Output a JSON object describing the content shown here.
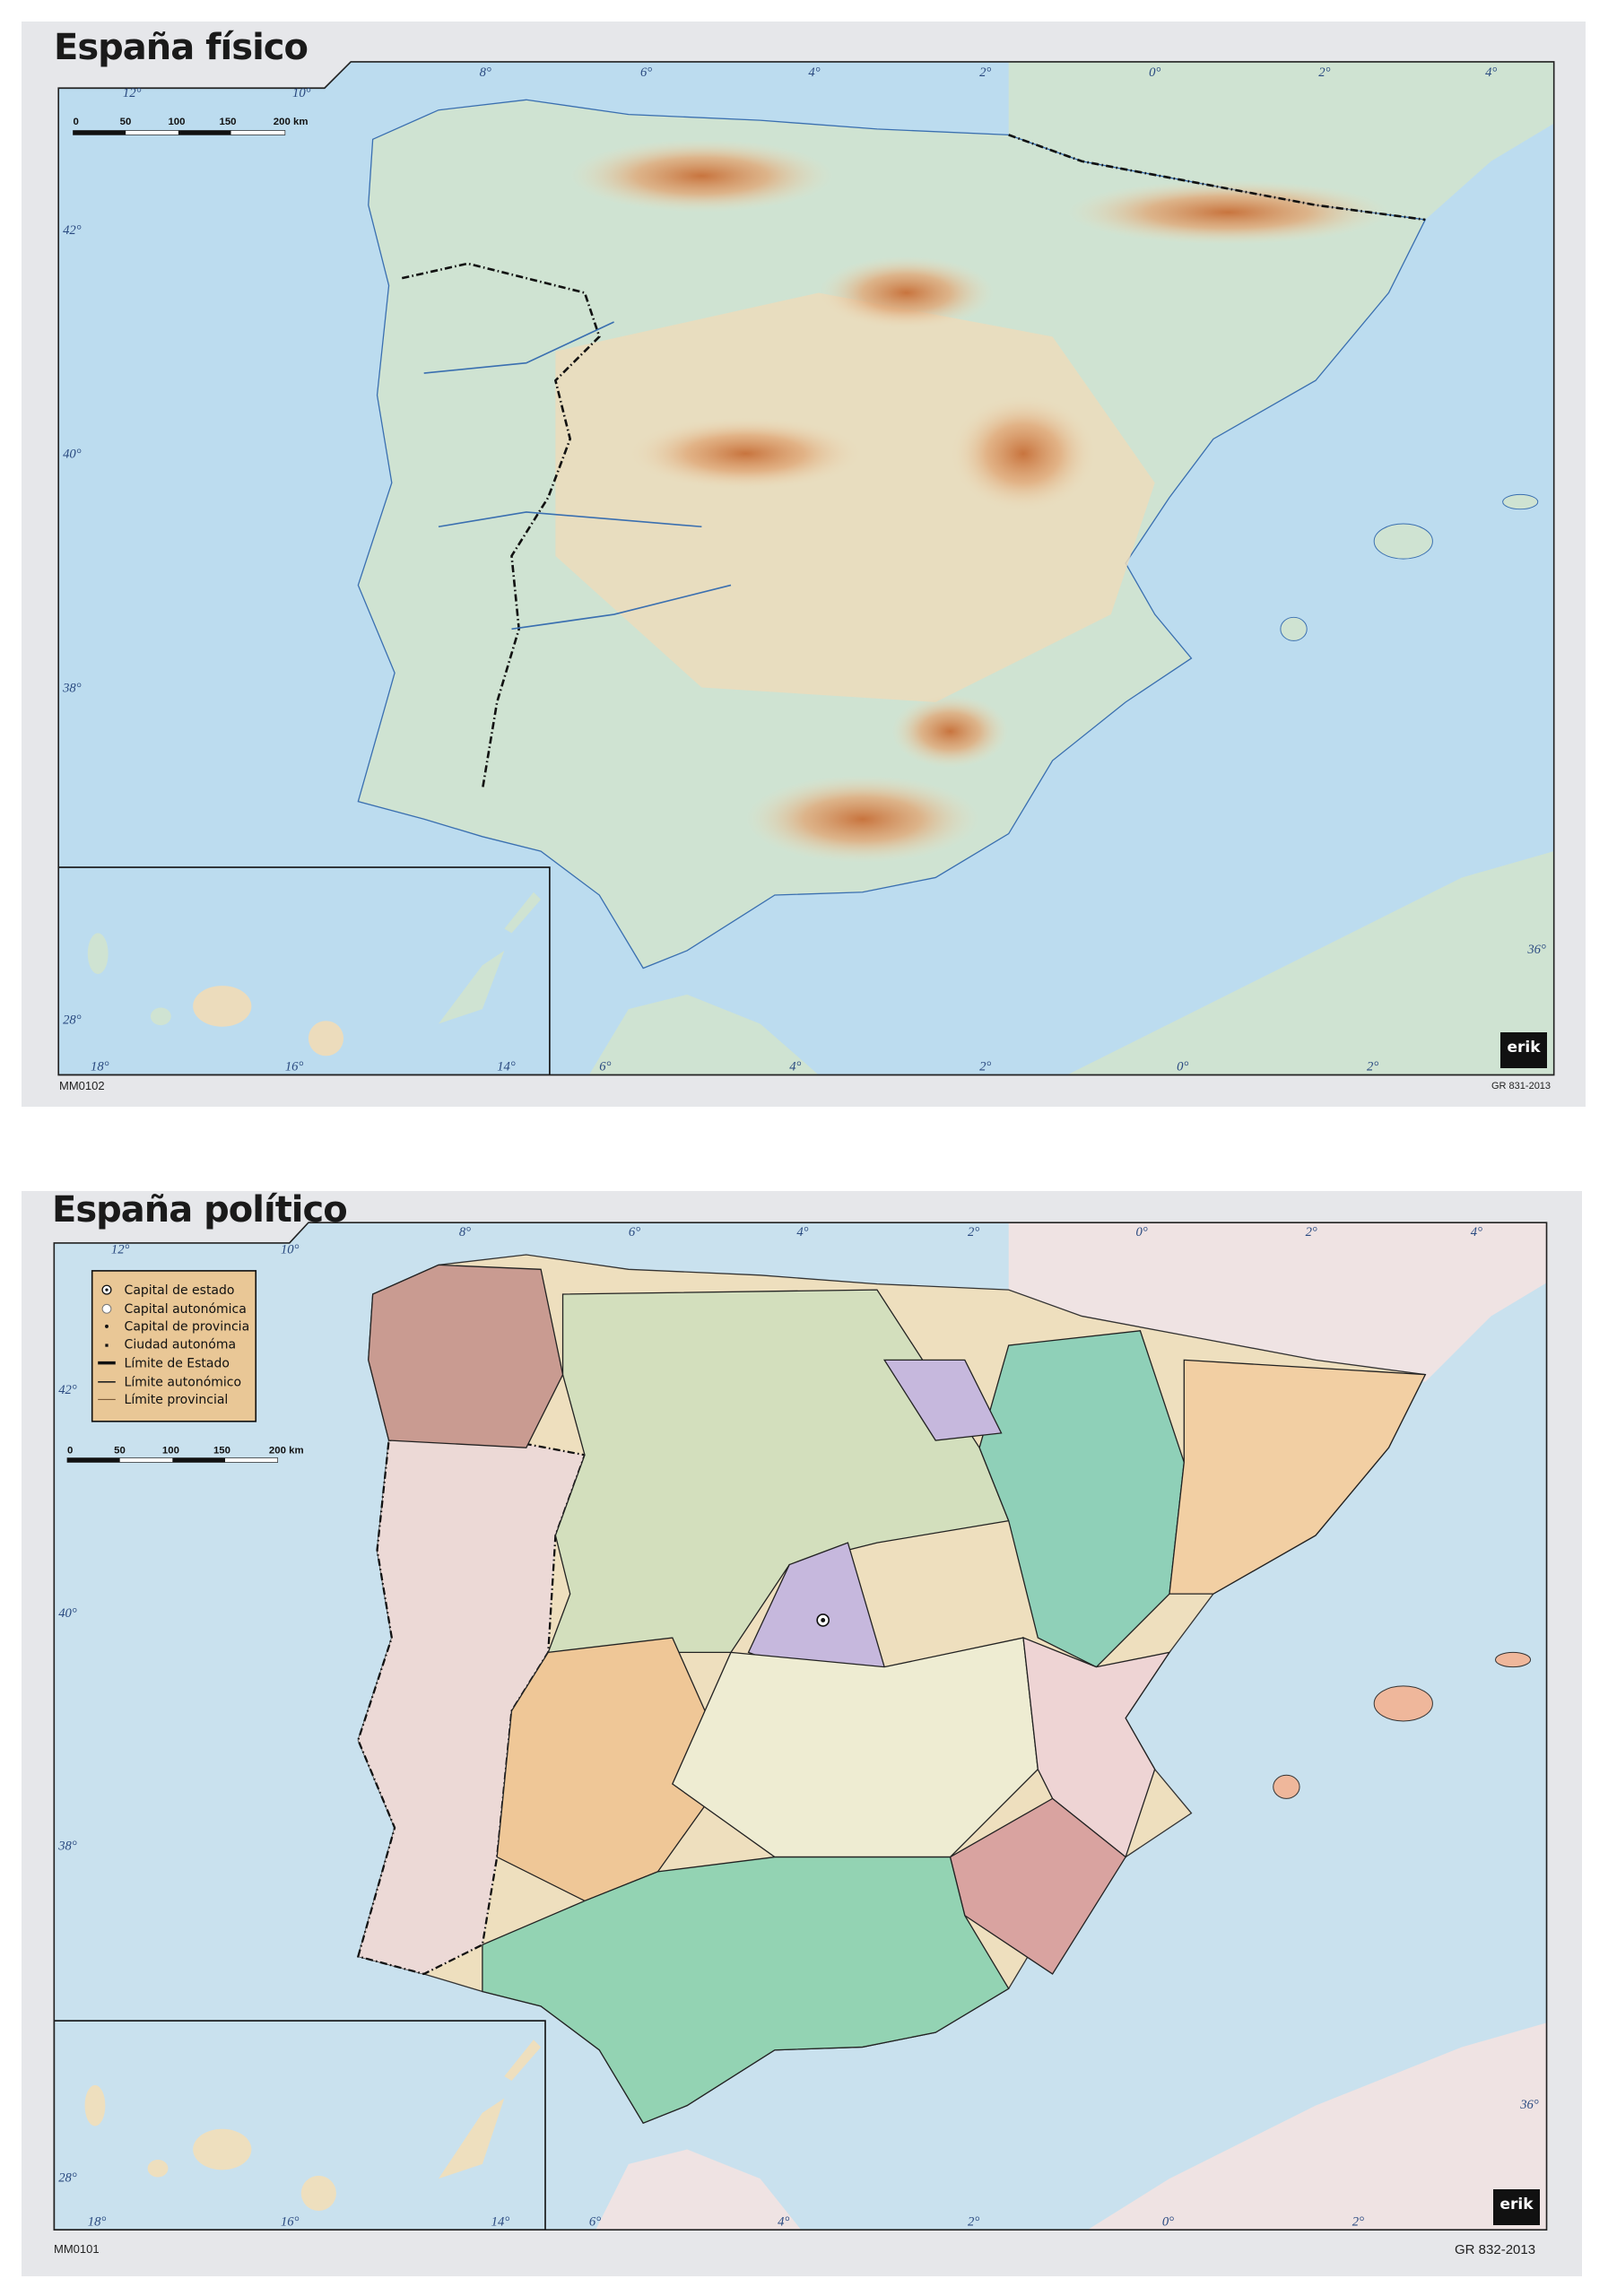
{
  "physical_map": {
    "title": "España físico",
    "code": "MM0102",
    "registration": "GR 831-2013",
    "scale": {
      "labels": [
        "0",
        "50",
        "100",
        "150",
        "200 km"
      ]
    },
    "top_degrees": [
      "8°",
      "6°",
      "4°",
      "2°",
      "0°",
      "2°",
      "4°"
    ],
    "left_degrees": [
      "12°",
      "10°"
    ],
    "lat_degrees": [
      "42°",
      "40°",
      "38°",
      "36°"
    ],
    "bottom_degrees": [
      "6°",
      "4°",
      "2°",
      "0°",
      "2°"
    ],
    "inset_degrees": [
      "18°",
      "16°",
      "14°",
      "28°"
    ],
    "logo": "erik",
    "colors": {
      "sea": "#bcdcef",
      "lowland": "#cfe3d2",
      "plateau": "#ecdcbc",
      "mountain": "#d9935f"
    }
  },
  "political_map": {
    "title": "España político",
    "code": "MM0101",
    "registration": "GR 832-2013",
    "scale": {
      "labels": [
        "0",
        "50",
        "100",
        "150",
        "200 km"
      ]
    },
    "legend": [
      {
        "symbol": "state-capital",
        "label": "Capital de estado"
      },
      {
        "symbol": "regional-capital",
        "label": "Capital autonómica"
      },
      {
        "symbol": "provincial-capital",
        "label": "Capital de provincia"
      },
      {
        "symbol": "autonomous-city",
        "label": "Ciudad autonóma"
      },
      {
        "symbol": "state-border",
        "label": "Límite de Estado"
      },
      {
        "symbol": "regional-border",
        "label": "Límite autonómico"
      },
      {
        "symbol": "provincial-border",
        "label": "Límite provincial"
      }
    ],
    "top_degrees": [
      "8°",
      "6°",
      "4°",
      "2°",
      "0°",
      "2°",
      "4°"
    ],
    "left_degrees": [
      "12°",
      "10°"
    ],
    "lat_degrees": [
      "42°",
      "40°",
      "38°",
      "36°"
    ],
    "bottom_degrees": [
      "6°",
      "4°",
      "2°",
      "0°",
      "2°"
    ],
    "inset_degrees": [
      "18°",
      "16°",
      "14°",
      "28°"
    ],
    "logo": "erik",
    "colors": {
      "sea": "#c9e1ee",
      "legend_bg": "#e9c796",
      "portugal": "#ecd9d6",
      "castilla_leon": "#d3dfbd",
      "aragon": "#8fd0b8",
      "andalucia": "#93d3b3",
      "extremadura": "#efc797",
      "castilla_mancha": "#eeecd2",
      "catalonia": "#f2cfa3",
      "madrid": "#c6b8dd",
      "galicia": "#c99b91",
      "murcia": "#d9a3a0",
      "valencia": "#eed4d4"
    }
  }
}
